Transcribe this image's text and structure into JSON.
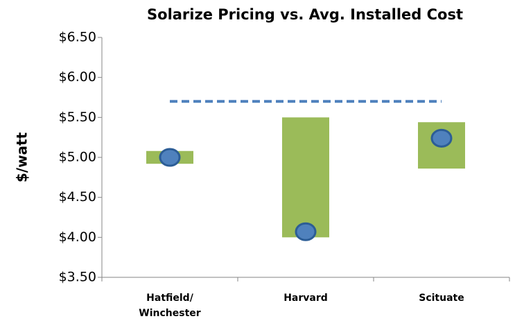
{
  "chart_data": {
    "type": "range_bar",
    "title": "Solarize Pricing vs. Avg. Installed Cost",
    "ylabel": "$/watt",
    "categories": [
      "Hatfield/ Winchester",
      "Harvard",
      "Scituate"
    ],
    "low": [
      4.92,
      4.0,
      4.86
    ],
    "high": [
      5.08,
      5.5,
      5.44
    ],
    "markers": [
      5.0,
      4.07,
      5.24
    ],
    "reference_line": 5.7,
    "bar_color": "#9bbb59",
    "marker_color": "#4f81bd",
    "line_color": "#4f81bd",
    "ylim": [
      3.5,
      6.5
    ],
    "yticks": [
      {
        "value": 3.5,
        "label": "$3.50"
      },
      {
        "value": 4.0,
        "label": "$4.00"
      },
      {
        "value": 4.5,
        "label": "$4.50"
      },
      {
        "value": 5.0,
        "label": "$5.00"
      },
      {
        "value": 5.5,
        "label": "$5.50"
      },
      {
        "value": 6.0,
        "label": "$6.00"
      },
      {
        "value": 6.5,
        "label": "$6.50"
      }
    ]
  }
}
